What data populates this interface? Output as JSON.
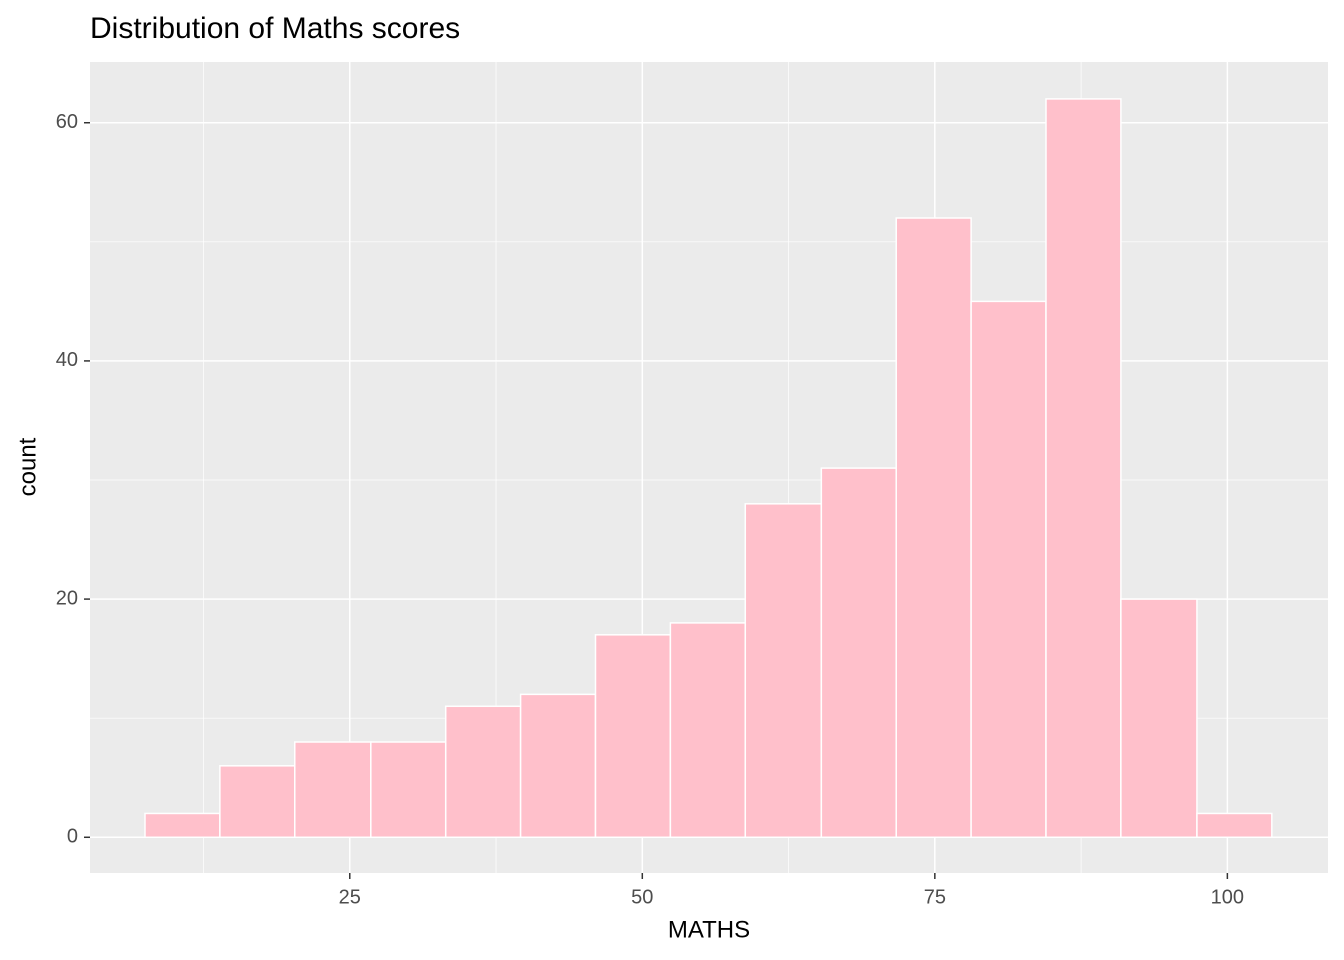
{
  "chart_data": {
    "type": "histogram",
    "title": "Distribution of Maths scores",
    "x_label": "MATHS",
    "y_label": "count",
    "bins": [
      7.5,
      13.9,
      20.3,
      26.8,
      33.2,
      39.6,
      46.0,
      52.4,
      58.8,
      65.3,
      71.7,
      78.1,
      84.5,
      90.9,
      97.4,
      103.8
    ],
    "counts": [
      2,
      6,
      8,
      8,
      11,
      12,
      17,
      18,
      28,
      31,
      52,
      45,
      62,
      20,
      2
    ],
    "color": "#ffc0cb",
    "edge_color": "#ffffff",
    "xlim": [
      2.8,
      108.6
    ],
    "ylim": [
      -3,
      65.1
    ],
    "xticks": [
      25,
      50,
      75,
      100
    ],
    "yticks": [
      0,
      20,
      40,
      60
    ],
    "x_minor_ticks": [
      12.5,
      37.5,
      62.5,
      87.5
    ],
    "y_minor_ticks": [
      10,
      30,
      50
    ],
    "grid": true
  }
}
